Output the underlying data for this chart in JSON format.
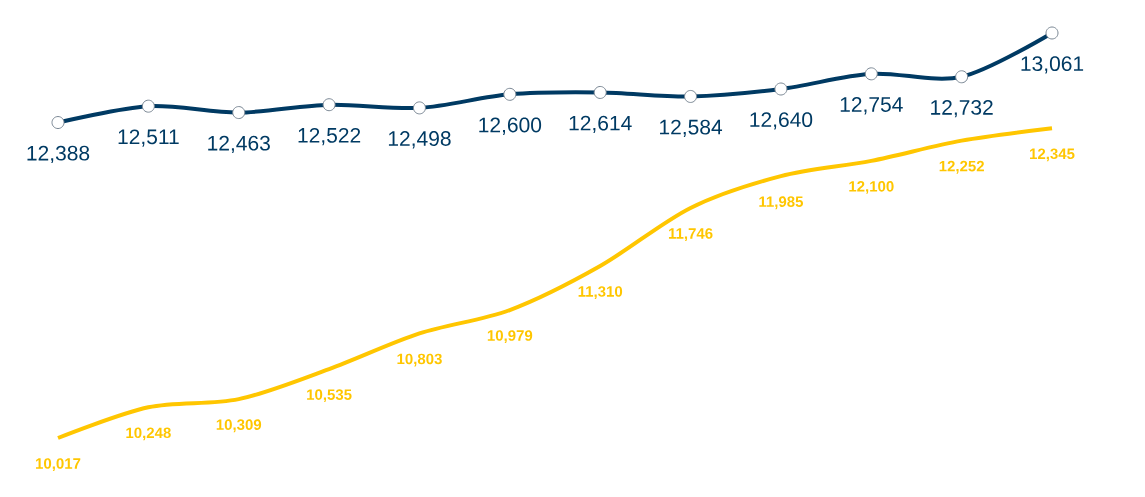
{
  "chart_data": {
    "type": "line",
    "categories": [
      null,
      null,
      null,
      null,
      null,
      null,
      null,
      null,
      null,
      null,
      null,
      null
    ],
    "series": [
      {
        "color": "#003a63",
        "marker": "circle",
        "values": [
          12388,
          12511,
          12463,
          12522,
          12498,
          12600,
          12614,
          12584,
          12640,
          12754,
          12732,
          13061
        ],
        "value_labels": [
          "12,388",
          "12,511",
          "12,463",
          "12,522",
          "12,498",
          "12,600",
          "12,614",
          "12,584",
          "12,640",
          "12,754",
          "12,732",
          "13,061"
        ]
      },
      {
        "color": "#ffc600",
        "marker": "none",
        "values": [
          10017,
          10248,
          10309,
          10535,
          10803,
          10979,
          11310,
          11746,
          11985,
          12100,
          12252,
          12345
        ],
        "value_labels": [
          "10,017",
          "10,248",
          "10,309",
          "10,535",
          "10,803",
          "10,979",
          "11,310",
          "11,746",
          "11,985",
          "12,100",
          "12,252",
          "12,345"
        ]
      }
    ]
  }
}
